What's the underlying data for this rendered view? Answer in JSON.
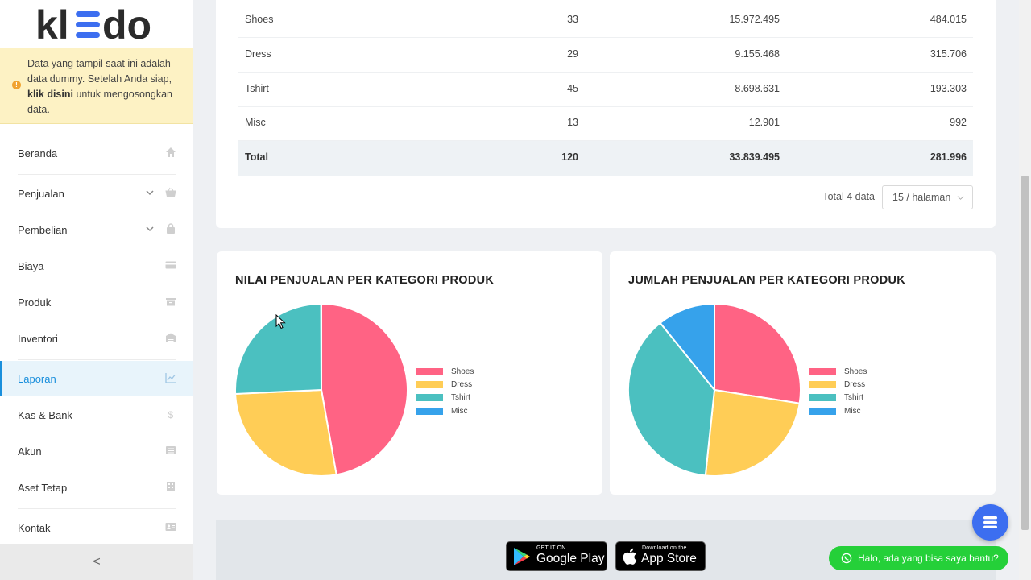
{
  "brand": {
    "logo_text": "kledo",
    "accent": "#1a8fdc"
  },
  "banner": {
    "line1": "Data yang tampil saat ini adalah data dummy. Setelah Anda siap,",
    "link": "klik disini",
    "line2": "untuk mengosongkan data."
  },
  "sidebar": {
    "items": [
      {
        "label": "Beranda",
        "icon": "home-icon"
      },
      {
        "label": "Penjualan",
        "icon": "basket-icon",
        "expandable": true
      },
      {
        "label": "Pembelian",
        "icon": "bag-icon",
        "expandable": true
      },
      {
        "label": "Biaya",
        "icon": "card-icon"
      },
      {
        "label": "Produk",
        "icon": "box-icon"
      },
      {
        "label": "Inventori",
        "icon": "warehouse-icon"
      },
      {
        "label": "Laporan",
        "icon": "chart-icon",
        "active": true
      },
      {
        "label": "Kas & Bank",
        "icon": "dollar-icon"
      },
      {
        "label": "Akun",
        "icon": "list-icon"
      },
      {
        "label": "Aset Tetap",
        "icon": "building-icon"
      },
      {
        "label": "Kontak",
        "icon": "contact-card-icon"
      }
    ],
    "collapse_label": "<"
  },
  "table": {
    "rows": [
      [
        "Shoes",
        "33",
        "15.972.495",
        "484.015"
      ],
      [
        "Dress",
        "29",
        "9.155.468",
        "315.706"
      ],
      [
        "Tshirt",
        "45",
        "8.698.631",
        "193.303"
      ],
      [
        "Misc",
        "13",
        "12.901",
        "992"
      ]
    ],
    "total": [
      "Total",
      "120",
      "33.839.495",
      "281.996"
    ],
    "pager_text": "Total 4 data",
    "page_size": "15 / halaman"
  },
  "chart_data": [
    {
      "type": "pie",
      "title": "NILAI PENJUALAN PER KATEGORI PRODUK",
      "categories": [
        "Shoes",
        "Dress",
        "Tshirt",
        "Misc"
      ],
      "values": [
        15972495,
        9155468,
        8698631,
        12901
      ],
      "colors": [
        "#ff6384",
        "#ffcd56",
        "#4bc0c0",
        "#36a2eb"
      ],
      "legend": "right"
    },
    {
      "type": "pie",
      "title": "JUMLAH PENJUALAN PER KATEGORI PRODUK",
      "categories": [
        "Shoes",
        "Dress",
        "Tshirt",
        "Misc"
      ],
      "values": [
        33,
        29,
        45,
        13
      ],
      "colors": [
        "#ff6384",
        "#ffcd56",
        "#4bc0c0",
        "#36a2eb"
      ],
      "legend": "right"
    }
  ],
  "footer": {
    "google_small": "GET IT ON",
    "google_big": "Google Play",
    "apple_small": "Download on the",
    "apple_big": "App Store",
    "whatsapp_label": "Halo, ada yang bisa saya bantu?"
  }
}
